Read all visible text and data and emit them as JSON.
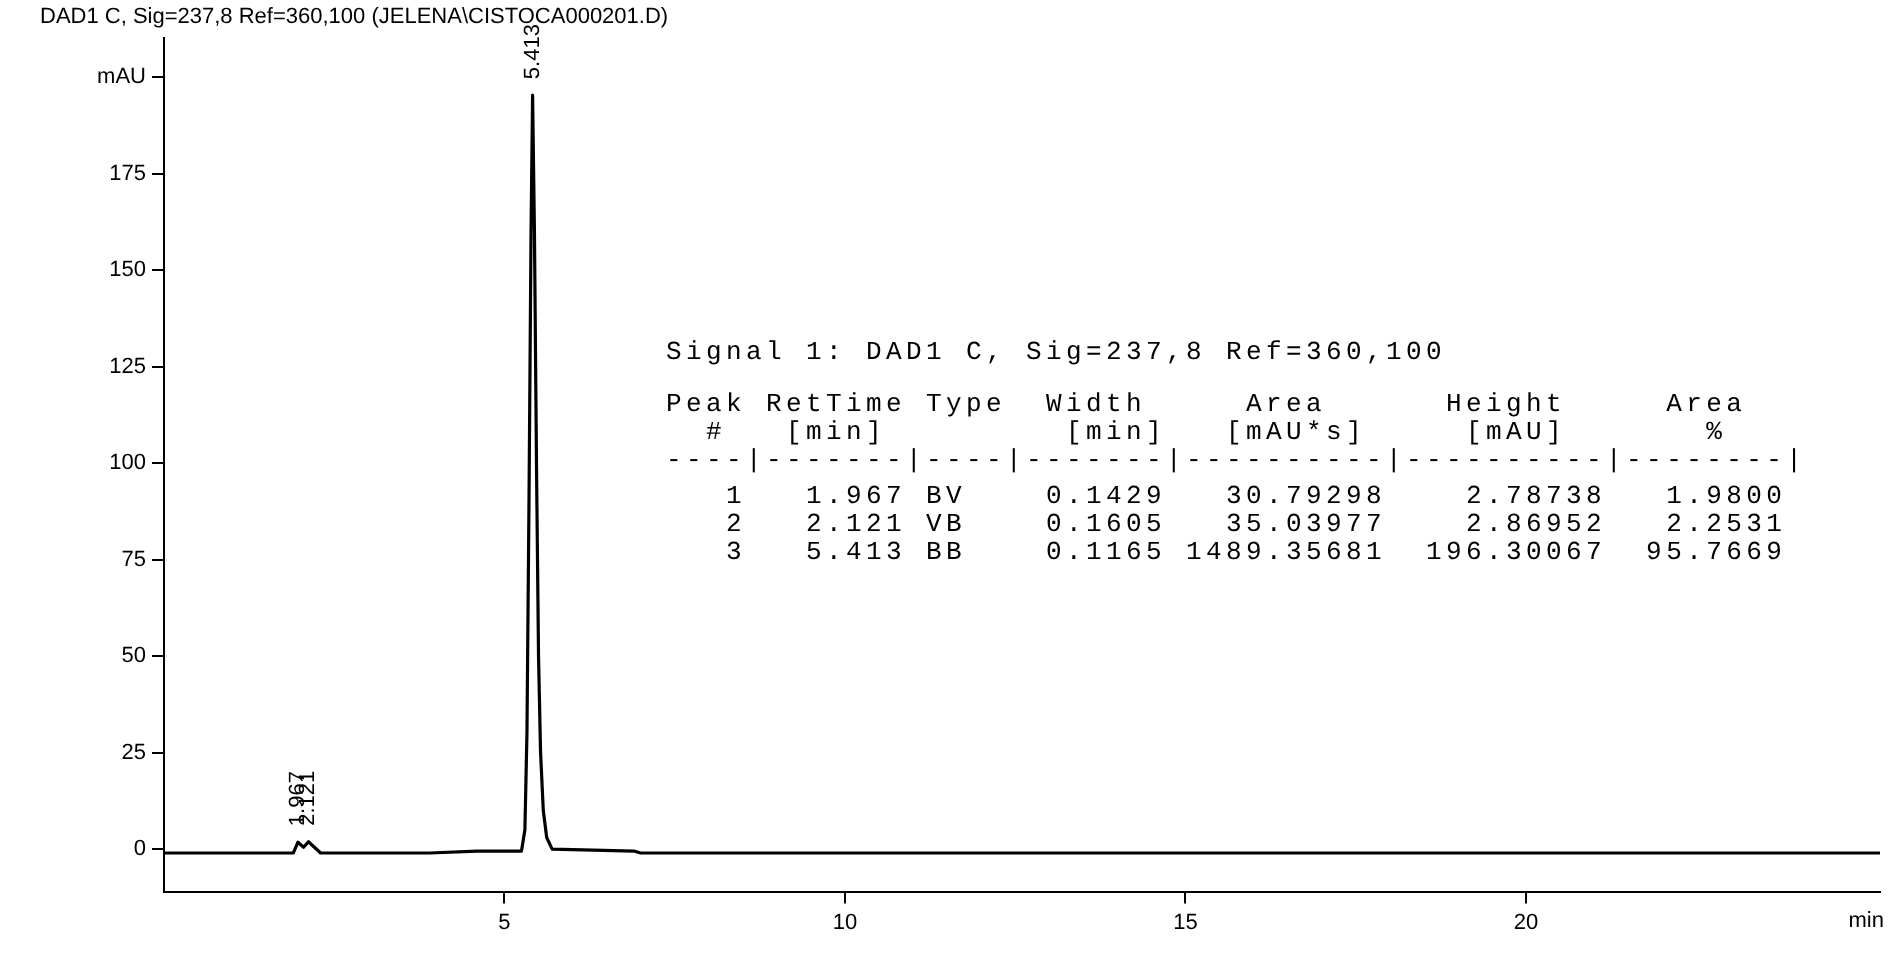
{
  "chart_data": {
    "type": "line",
    "title": "DAD1 C, Sig=237,8 Ref=360,100 (JELENA\\CISTOCA000201.D)",
    "xlabel": "min",
    "x": [
      0,
      1.9,
      1.967,
      2.05,
      2.121,
      2.3,
      3.9,
      4.6,
      5.0,
      5.25,
      5.3,
      5.33,
      5.36,
      5.39,
      5.413,
      5.44,
      5.47,
      5.5,
      5.53,
      5.57,
      5.62,
      5.7,
      6.9,
      7,
      25.2
    ],
    "series": [
      {
        "color": "#000000",
        "values": [
          -1,
          -1,
          1.8,
          0.5,
          1.9,
          -1,
          -1,
          -0.5,
          -0.5,
          -0.5,
          5,
          30,
          90,
          160,
          195.3,
          160,
          100,
          50,
          25,
          10,
          3,
          0,
          -0.5,
          -1,
          -1
        ]
      }
    ],
    "xlim": [
      0,
      25.2
    ],
    "xticks": [
      5,
      10,
      15,
      20
    ],
    "ylim": [
      -11,
      210
    ],
    "yticks": [
      0,
      25,
      50,
      75,
      100,
      125,
      150,
      175,
      {
        "value": 200,
        "label": "mAU"
      }
    ],
    "grid": false,
    "legend": false,
    "marker": "none",
    "line_style": "solid",
    "annotations": [
      {
        "text": "5.413",
        "x": 5.413,
        "y": 195.3
      },
      {
        "text": "1.967",
        "x": 1.967,
        "y": 1.8
      },
      {
        "text": "2.121",
        "x": 2.121,
        "y": 1.9
      },
      "Signal 1: DAD1 C, Sig=237,8 Ref=360,100",
      "Peak RetTime Type  Width     Area      Height     Area  ",
      "  #   [min]         [min]   [mAU*s]     [mAU]       %   ",
      "----|-------|----|-------|----------|----------|--------|",
      "   1   1.967 BV    0.1429   30.79298    2.78738   1.9800",
      "   2   2.121 VB    0.1605   35.03977    2.86952   2.2531",
      "   3   5.413 BB    0.1165 1489.35681  196.30067  95.7669"
    ]
  }
}
